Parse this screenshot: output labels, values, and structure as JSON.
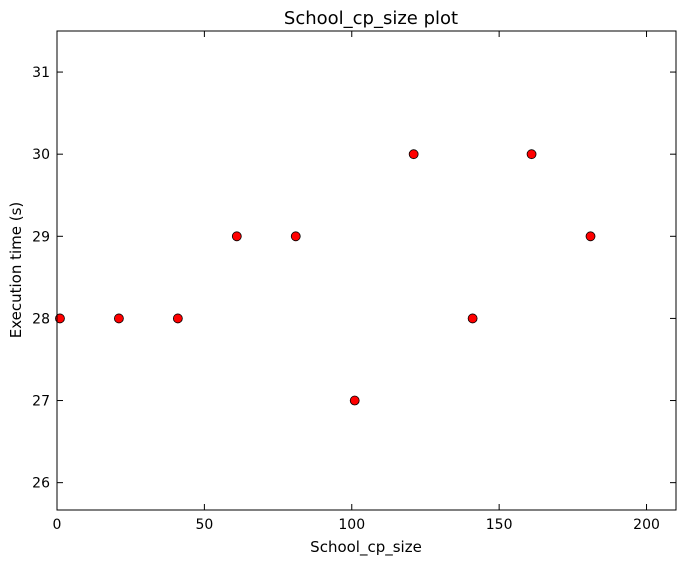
{
  "chart_data": {
    "type": "scatter",
    "title": "School_cp_size plot",
    "xlabel": "School_cp_size",
    "ylabel": "Execution time (s)",
    "xlim": [
      0,
      210
    ],
    "ylim": [
      25.667,
      31.5
    ],
    "xticks": [
      0,
      50,
      100,
      150,
      200
    ],
    "yticks": [
      26,
      27,
      28,
      29,
      30,
      31
    ],
    "grid": false,
    "legend": null,
    "marker_color": "#ff0000",
    "marker_edge_color": "#000000",
    "x": [
      1,
      21,
      41,
      61,
      81,
      101,
      121,
      141,
      161,
      181
    ],
    "y": [
      28,
      28,
      28,
      29,
      29,
      27,
      30,
      28,
      30,
      29
    ]
  }
}
